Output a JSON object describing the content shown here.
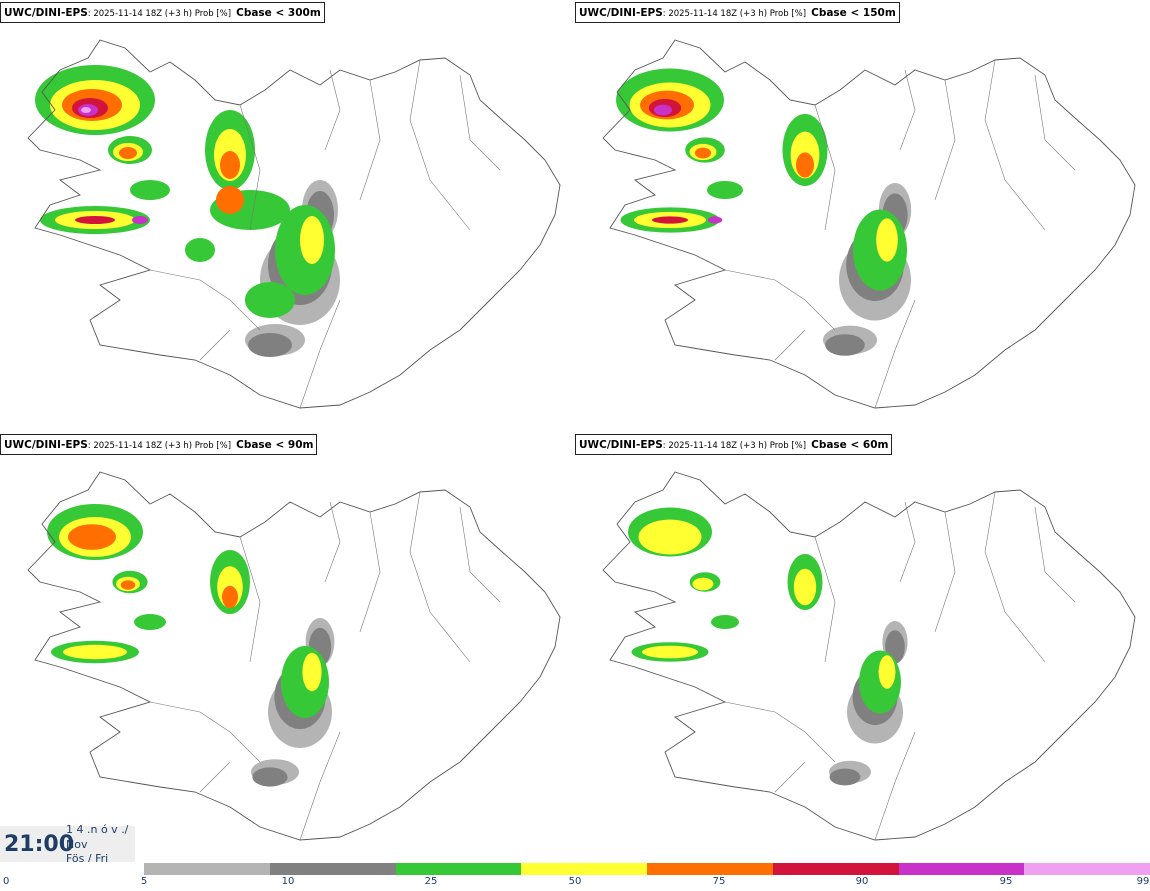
{
  "panels": [
    {
      "model": "UWC/DINI-EPS",
      "run": ": 2025-11-14 18Z (+3 h) Prob [%]",
      "field": "Cbase < 300m",
      "level": 4
    },
    {
      "model": "UWC/DINI-EPS",
      "run": ": 2025-11-14 18Z (+3 h) Prob [%]",
      "field": "Cbase < 150m",
      "level": 3
    },
    {
      "model": "UWC/DINI-EPS",
      "run": ": 2025-11-14 18Z (+3 h) Prob [%]",
      "field": "Cbase < 90m",
      "level": 2
    },
    {
      "model": "UWC/DINI-EPS",
      "run": ": 2025-11-14 18Z (+3 h) Prob [%]",
      "field": "Cbase < 60m",
      "level": 1
    }
  ],
  "time": {
    "hour": "21:00",
    "day": "1 4 .n ó v ./",
    "month": "Nov",
    "weekday": "Fös / Fri"
  },
  "legend": {
    "ticks": [
      "0",
      "5",
      "10",
      "25",
      "50",
      "75",
      "90",
      "95",
      "99"
    ],
    "colors": [
      "#b4b4b4",
      "#808080",
      "#37c837",
      "#ffff32",
      "#ff6e00",
      "#d2143c",
      "#c832c8",
      "#f0a0f0"
    ]
  },
  "colors": {
    "coast": "#555555",
    "background": "#ffffff"
  }
}
